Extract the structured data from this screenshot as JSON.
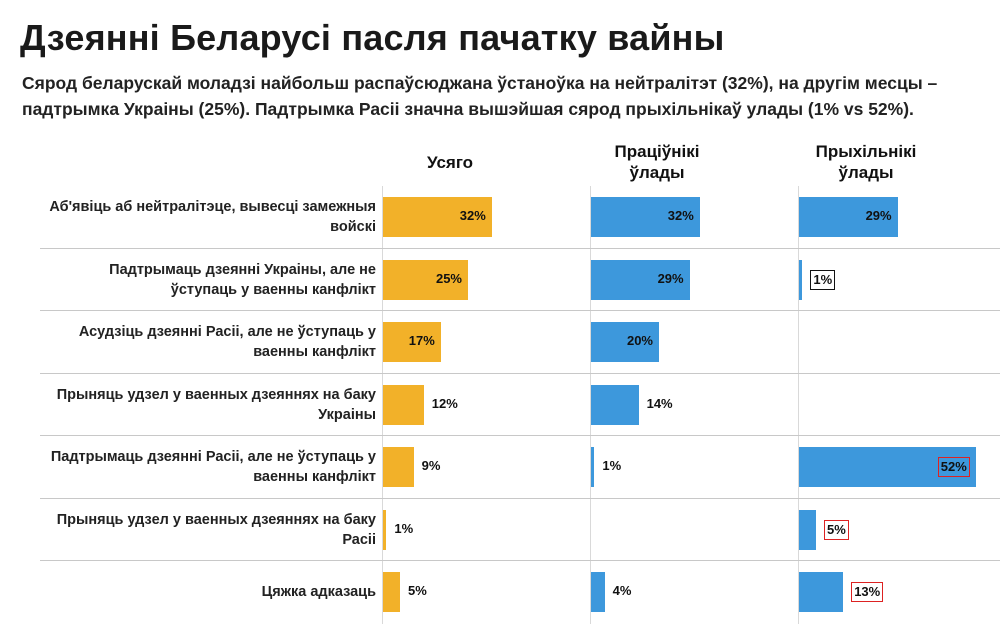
{
  "chart_data": {
    "type": "bar",
    "title": "Дзеянні Беларусі пасля пачатку вайны",
    "subtitle": "Сярод беларускай моладзі найбольш распаўсюджана ўстаноўка на нейтралітэт (32%), на другім месцы – падтрымка Украіны (25%). Падтрымка Расіі значна вышэйшая сярод прыхільнікаў улады (1% vs 52%).",
    "categories": [
      "Аб'явіць аб нейтралітэце, вывесці замежныя войскі",
      "Падтрымаць дзеянні Украіны, але не ўступаць у ваенны канфлікт",
      "Асудзіць дзеянні Расіі, але не ўступаць у ваенны канфлікт",
      "Прыняць удзел у ваенных дзеяннях на баку Украіны",
      "Падтрымаць дзеянні Расіі, але не ўступаць у ваенны канфлікт",
      "Прыняць удзел у ваенных дзеяннях на баку Расіі",
      "Цяжка адказаць"
    ],
    "series": [
      {
        "name": "Усяго",
        "color": "#f2b129",
        "values": [
          32,
          25,
          17,
          12,
          9,
          1,
          5
        ],
        "labels": [
          "32%",
          "25%",
          "17%",
          "12%",
          "9%",
          "1%",
          "5%"
        ]
      },
      {
        "name": "Праціўнікі ўлады",
        "color": "#3d98dc",
        "values": [
          32,
          29,
          20,
          14,
          1,
          null,
          4
        ],
        "labels": [
          "32%",
          "29%",
          "20%",
          "14%",
          "1%",
          "",
          "4%"
        ]
      },
      {
        "name": "Прыхільнікі ўлады",
        "color": "#3d98dc",
        "values": [
          29,
          1,
          null,
          null,
          52,
          5,
          13
        ],
        "labels": [
          "29%",
          "1%",
          "",
          "",
          "52%",
          "5%",
          "13%"
        ]
      }
    ],
    "highlight": {
      "black_box": [
        [
          2,
          1
        ]
      ],
      "red_box": [
        [
          2,
          4
        ],
        [
          2,
          5
        ],
        [
          2,
          6
        ]
      ]
    }
  }
}
